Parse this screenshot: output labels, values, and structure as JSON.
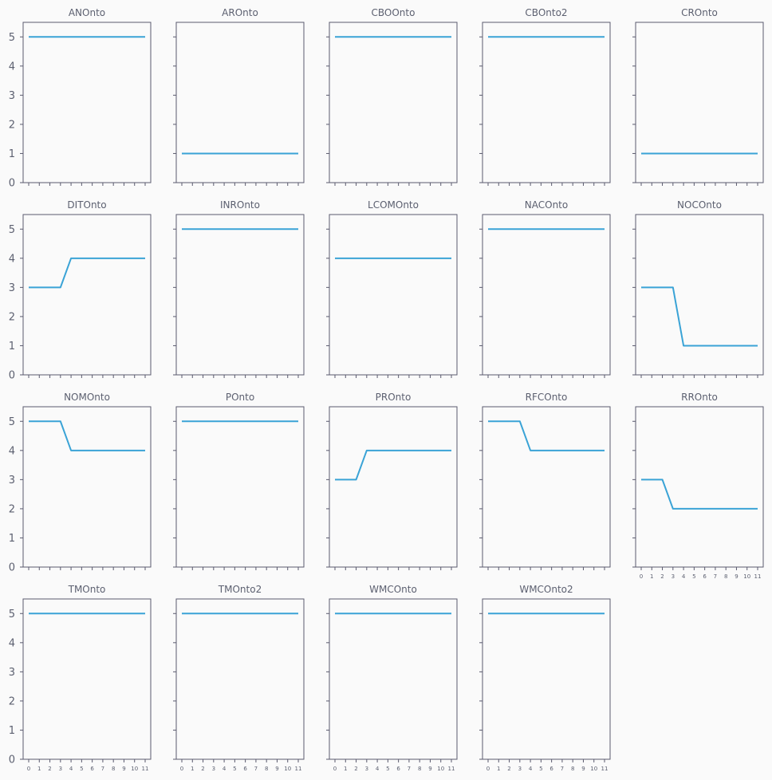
{
  "chart_data": {
    "type": "line",
    "ylim": [
      0,
      5.5
    ],
    "yticks": [
      "0",
      "1",
      "2",
      "3",
      "4",
      "5"
    ],
    "x": [
      0,
      1,
      2,
      3,
      4,
      5,
      6,
      7,
      8,
      9,
      10,
      11
    ],
    "xtick_labels": [
      "0",
      "1",
      "2",
      "3",
      "4",
      "5",
      "6",
      "7",
      "8",
      "9",
      "10",
      "11"
    ],
    "line_color": "#3aa3d6",
    "grid": false,
    "panels": [
      {
        "title": "ANOnto",
        "values": [
          5,
          5,
          5,
          5,
          5,
          5,
          5,
          5,
          5,
          5,
          5,
          5
        ]
      },
      {
        "title": "AROnto",
        "values": [
          1,
          1,
          1,
          1,
          1,
          1,
          1,
          1,
          1,
          1,
          1,
          1
        ]
      },
      {
        "title": "CBOOnto",
        "values": [
          5,
          5,
          5,
          5,
          5,
          5,
          5,
          5,
          5,
          5,
          5,
          5
        ]
      },
      {
        "title": "CBOnto2",
        "values": [
          5,
          5,
          5,
          5,
          5,
          5,
          5,
          5,
          5,
          5,
          5,
          5
        ]
      },
      {
        "title": "CROnto",
        "values": [
          1,
          1,
          1,
          1,
          1,
          1,
          1,
          1,
          1,
          1,
          1,
          1
        ]
      },
      {
        "title": "DITOnto",
        "values": [
          3,
          3,
          3,
          3,
          4,
          4,
          4,
          4,
          4,
          4,
          4,
          4
        ]
      },
      {
        "title": "INROnto",
        "values": [
          5,
          5,
          5,
          5,
          5,
          5,
          5,
          5,
          5,
          5,
          5,
          5
        ]
      },
      {
        "title": "LCOMOnto",
        "values": [
          4,
          4,
          4,
          4,
          4,
          4,
          4,
          4,
          4,
          4,
          4,
          4
        ]
      },
      {
        "title": "NACOnto",
        "values": [
          5,
          5,
          5,
          5,
          5,
          5,
          5,
          5,
          5,
          5,
          5,
          5
        ]
      },
      {
        "title": "NOCOnto",
        "values": [
          3,
          3,
          3,
          3,
          1,
          1,
          1,
          1,
          1,
          1,
          1,
          1
        ]
      },
      {
        "title": "NOMOnto",
        "values": [
          5,
          5,
          5,
          5,
          4,
          4,
          4,
          4,
          4,
          4,
          4,
          4
        ]
      },
      {
        "title": "POnto",
        "values": [
          5,
          5,
          5,
          5,
          5,
          5,
          5,
          5,
          5,
          5,
          5,
          5
        ]
      },
      {
        "title": "PROnto",
        "values": [
          3,
          3,
          3,
          4,
          4,
          4,
          4,
          4,
          4,
          4,
          4,
          4
        ]
      },
      {
        "title": "RFCOnto",
        "values": [
          5,
          5,
          5,
          5,
          4,
          4,
          4,
          4,
          4,
          4,
          4,
          4
        ]
      },
      {
        "title": "RROnto",
        "values": [
          3,
          3,
          3,
          2,
          2,
          2,
          2,
          2,
          2,
          2,
          2,
          2
        ]
      },
      {
        "title": "TMOnto",
        "values": [
          5,
          5,
          5,
          5,
          5,
          5,
          5,
          5,
          5,
          5,
          5,
          5
        ]
      },
      {
        "title": "TMOnto2",
        "values": [
          5,
          5,
          5,
          5,
          5,
          5,
          5,
          5,
          5,
          5,
          5,
          5
        ]
      },
      {
        "title": "WMCOnto",
        "values": [
          5,
          5,
          5,
          5,
          5,
          5,
          5,
          5,
          5,
          5,
          5,
          5
        ]
      },
      {
        "title": "WMCOnto2",
        "values": [
          5,
          5,
          5,
          5,
          5,
          5,
          5,
          5,
          5,
          5,
          5,
          5
        ]
      }
    ]
  }
}
